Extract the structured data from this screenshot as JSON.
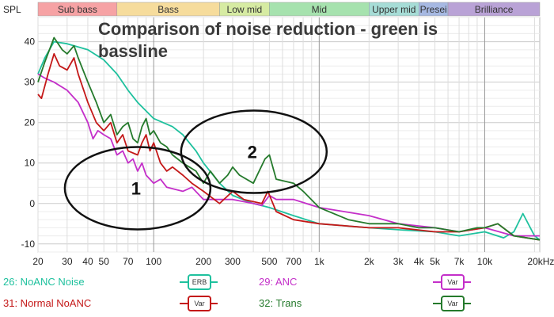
{
  "chart_data": {
    "type": "line",
    "title": "Comparison of noise reduction - green is bassline",
    "ylabel": "SPL",
    "xscale": "log",
    "xlim": [
      20,
      21500
    ],
    "ylim": [
      -12,
      46
    ],
    "grid": true,
    "yticks": [
      -10,
      0,
      10,
      20,
      30,
      40
    ],
    "xticks": [
      {
        "v": 20,
        "l": "20"
      },
      {
        "v": 30,
        "l": "30"
      },
      {
        "v": 40,
        "l": "40"
      },
      {
        "v": 50,
        "l": "50"
      },
      {
        "v": 70,
        "l": "70"
      },
      {
        "v": 100,
        "l": "100"
      },
      {
        "v": 200,
        "l": "200"
      },
      {
        "v": 300,
        "l": "300"
      },
      {
        "v": 500,
        "l": "500"
      },
      {
        "v": 700,
        "l": "700"
      },
      {
        "v": 1000,
        "l": "1k"
      },
      {
        "v": 2000,
        "l": "2k"
      },
      {
        "v": 3000,
        "l": "3k"
      },
      {
        "v": 4000,
        "l": "4k"
      },
      {
        "v": 5000,
        "l": "5k"
      },
      {
        "v": 7000,
        "l": "7k"
      },
      {
        "v": 10000,
        "l": "10k"
      },
      {
        "v": 20000,
        "l": "20kHz"
      }
    ],
    "bands": [
      {
        "name": "Sub bass",
        "from": 20,
        "to": 60,
        "color": "#f6a2a4"
      },
      {
        "name": "Bass",
        "from": 60,
        "to": 250,
        "color": "#f6dc9c"
      },
      {
        "name": "Low mid",
        "from": 250,
        "to": 500,
        "color": "#d6eba2"
      },
      {
        "name": "Mid",
        "from": 500,
        "to": 2000,
        "color": "#a6e2ae"
      },
      {
        "name": "Upper mid",
        "from": 2000,
        "to": 4000,
        "color": "#a6dcd6"
      },
      {
        "name": "Presence",
        "label": "Presei",
        "from": 4000,
        "to": 6000,
        "color": "#a6b8e2"
      },
      {
        "name": "Brilliance",
        "from": 6000,
        "to": 21500,
        "color": "#b9a2d6"
      }
    ],
    "series": [
      {
        "name": "26: NoANC Noise",
        "smoothing": "ERB",
        "color": "#1fc19e",
        "points": [
          [
            20,
            32
          ],
          [
            22,
            36
          ],
          [
            25,
            40
          ],
          [
            30,
            39.5
          ],
          [
            40,
            38
          ],
          [
            50,
            35.5
          ],
          [
            60,
            32
          ],
          [
            70,
            28
          ],
          [
            80,
            25
          ],
          [
            100,
            21
          ],
          [
            130,
            19
          ],
          [
            150,
            17
          ],
          [
            180,
            13
          ],
          [
            200,
            10
          ],
          [
            250,
            5
          ],
          [
            300,
            2
          ],
          [
            400,
            0
          ],
          [
            500,
            -1
          ],
          [
            700,
            -3
          ],
          [
            1000,
            -5
          ],
          [
            2000,
            -6
          ],
          [
            3000,
            -6.5
          ],
          [
            5000,
            -7
          ],
          [
            7000,
            -8
          ],
          [
            10000,
            -7
          ],
          [
            13000,
            -8.5
          ],
          [
            15000,
            -7
          ],
          [
            17000,
            -2.5
          ],
          [
            20000,
            -8
          ],
          [
            21500,
            -9
          ]
        ]
      },
      {
        "name": "29: ANC",
        "smoothing": "Var",
        "color": "#c42fc9",
        "points": [
          [
            20,
            32
          ],
          [
            22,
            31
          ],
          [
            25,
            30
          ],
          [
            30,
            28
          ],
          [
            35,
            25
          ],
          [
            40,
            20
          ],
          [
            43,
            16
          ],
          [
            46,
            18
          ],
          [
            50,
            17
          ],
          [
            55,
            16
          ],
          [
            60,
            12
          ],
          [
            65,
            13
          ],
          [
            70,
            10
          ],
          [
            75,
            11
          ],
          [
            80,
            8
          ],
          [
            85,
            10
          ],
          [
            90,
            7
          ],
          [
            100,
            5
          ],
          [
            110,
            6
          ],
          [
            120,
            4
          ],
          [
            150,
            3
          ],
          [
            170,
            4
          ],
          [
            200,
            1
          ],
          [
            300,
            1
          ],
          [
            400,
            0
          ],
          [
            450,
            -0.5
          ],
          [
            500,
            2
          ],
          [
            550,
            1
          ],
          [
            700,
            1
          ],
          [
            1000,
            -1
          ],
          [
            2000,
            -3
          ],
          [
            3000,
            -5
          ],
          [
            5000,
            -6
          ],
          [
            7000,
            -7
          ],
          [
            10000,
            -6
          ],
          [
            15000,
            -8
          ],
          [
            21500,
            -8
          ]
        ]
      },
      {
        "name": "31: Normal NoANC",
        "smoothing": "Var",
        "color": "#c41818",
        "points": [
          [
            20,
            27
          ],
          [
            21,
            26
          ],
          [
            23,
            32
          ],
          [
            25,
            37
          ],
          [
            27,
            34
          ],
          [
            30,
            33
          ],
          [
            33,
            36
          ],
          [
            35,
            32
          ],
          [
            40,
            25
          ],
          [
            45,
            20
          ],
          [
            50,
            18
          ],
          [
            55,
            20
          ],
          [
            60,
            15
          ],
          [
            65,
            17
          ],
          [
            70,
            13
          ],
          [
            80,
            12
          ],
          [
            85,
            15
          ],
          [
            90,
            17
          ],
          [
            95,
            13
          ],
          [
            100,
            15
          ],
          [
            110,
            10
          ],
          [
            120,
            8
          ],
          [
            130,
            9
          ],
          [
            150,
            7
          ],
          [
            170,
            5
          ],
          [
            200,
            3
          ],
          [
            250,
            0
          ],
          [
            300,
            3
          ],
          [
            350,
            1
          ],
          [
            450,
            0
          ],
          [
            490,
            3
          ],
          [
            550,
            -2
          ],
          [
            700,
            -4
          ],
          [
            1000,
            -5
          ],
          [
            2000,
            -6
          ],
          [
            3000,
            -6
          ],
          [
            5000,
            -7
          ],
          [
            7000,
            -7
          ],
          [
            10000,
            -6
          ],
          [
            12000,
            -5
          ],
          [
            15000,
            -8
          ],
          [
            21500,
            -9
          ]
        ]
      },
      {
        "name": "32: Trans",
        "smoothing": "Var",
        "color": "#257a2c",
        "points": [
          [
            20,
            30
          ],
          [
            22,
            35
          ],
          [
            25,
            41
          ],
          [
            28,
            38
          ],
          [
            30,
            37
          ],
          [
            33,
            39
          ],
          [
            35,
            36
          ],
          [
            40,
            30
          ],
          [
            45,
            25
          ],
          [
            50,
            20
          ],
          [
            55,
            22
          ],
          [
            60,
            17
          ],
          [
            65,
            19
          ],
          [
            70,
            20
          ],
          [
            75,
            16
          ],
          [
            80,
            15
          ],
          [
            85,
            19
          ],
          [
            90,
            21
          ],
          [
            95,
            17
          ],
          [
            100,
            18
          ],
          [
            110,
            15
          ],
          [
            120,
            14
          ],
          [
            130,
            12
          ],
          [
            150,
            10
          ],
          [
            180,
            8
          ],
          [
            200,
            5
          ],
          [
            220,
            8
          ],
          [
            250,
            5
          ],
          [
            280,
            7
          ],
          [
            300,
            9
          ],
          [
            330,
            7
          ],
          [
            400,
            5
          ],
          [
            470,
            11
          ],
          [
            500,
            12
          ],
          [
            550,
            6
          ],
          [
            700,
            5
          ],
          [
            800,
            3
          ],
          [
            1000,
            -1
          ],
          [
            1500,
            -4
          ],
          [
            2000,
            -5
          ],
          [
            3000,
            -5
          ],
          [
            4000,
            -6
          ],
          [
            5000,
            -6
          ],
          [
            7000,
            -7
          ],
          [
            9000,
            -6
          ],
          [
            10000,
            -6
          ],
          [
            12000,
            -5
          ],
          [
            15000,
            -8
          ],
          [
            21500,
            -9
          ]
        ]
      }
    ],
    "annotations": [
      {
        "text": "1",
        "f": 80,
        "y": 3
      },
      {
        "text": "2",
        "f": 450,
        "y": 12
      }
    ]
  }
}
